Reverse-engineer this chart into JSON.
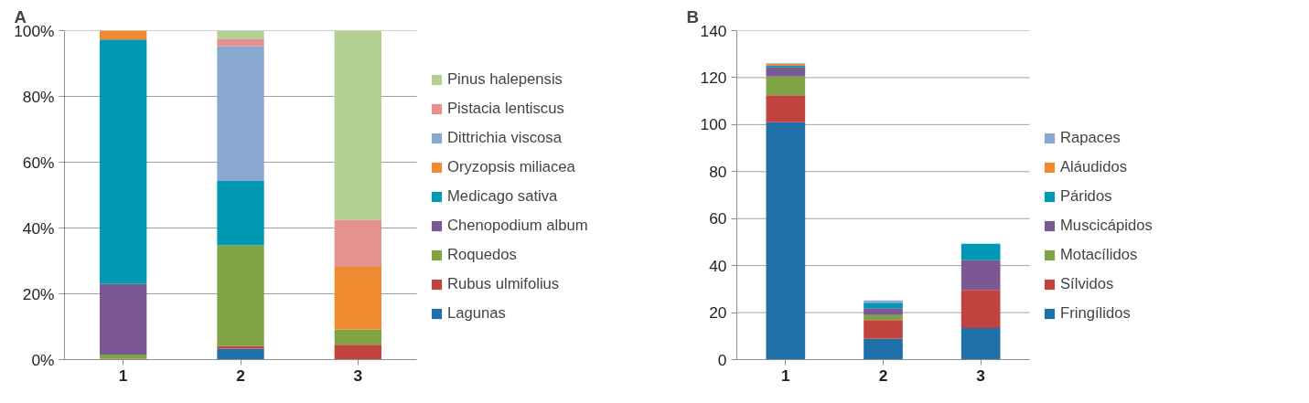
{
  "chart_data": [
    {
      "type": "bar",
      "title": "A",
      "categories": [
        "1",
        "2",
        "3"
      ],
      "stacked": true,
      "grid": "y",
      "legend": "right",
      "ylim": [
        0,
        100
      ],
      "yticks": [
        {
          "value": 0,
          "label": "0%"
        },
        {
          "value": 20,
          "label": "20%"
        },
        {
          "value": 40,
          "label": "40%"
        },
        {
          "value": 60,
          "label": "60%"
        },
        {
          "value": 80,
          "label": "80%"
        },
        {
          "value": 100,
          "label": "100%"
        }
      ],
      "series": [
        {
          "name": "Lagunas",
          "color": "#1f6fa8",
          "values": [
            0,
            3.3,
            0
          ]
        },
        {
          "name": "Rubus ulmifolius",
          "color": "#c0433e",
          "values": [
            0.3,
            0.9,
            4.5
          ]
        },
        {
          "name": "Roquedos",
          "color": "#7fa345",
          "values": [
            1.2,
            30.5,
            4.7
          ]
        },
        {
          "name": "Chenopodium album",
          "color": "#7a5891",
          "values": [
            21.5,
            0,
            0
          ]
        },
        {
          "name": "Medicago sativa",
          "color": "#0098b3",
          "values": [
            74.3,
            19.6,
            0
          ]
        },
        {
          "name": "Oryzopsis miliacea",
          "color": "#ef8a30",
          "values": [
            2.7,
            0,
            19
          ]
        },
        {
          "name": "Dittrichia viscosa",
          "color": "#8aa9d0",
          "values": [
            0,
            41,
            0
          ]
        },
        {
          "name": "Pistacia lentiscus",
          "color": "#e4928f",
          "values": [
            0,
            2.3,
            14.3
          ]
        },
        {
          "name": "Pinus halepensis",
          "color": "#b3d093",
          "values": [
            0,
            2.4,
            57.5
          ]
        }
      ]
    },
    {
      "type": "bar",
      "title": "B",
      "categories": [
        "1",
        "2",
        "3"
      ],
      "stacked": true,
      "grid": "y",
      "legend": "right",
      "ylim": [
        0,
        140
      ],
      "yticks": [
        0,
        20,
        40,
        60,
        80,
        100,
        120,
        140
      ],
      "series": [
        {
          "name": "Fringílidos",
          "color": "#1f6fa8",
          "values": [
            101,
            8.8,
            13.4
          ]
        },
        {
          "name": "Sílvidos",
          "color": "#c0433e",
          "values": [
            11.5,
            8,
            16.3
          ]
        },
        {
          "name": "Motacílidos",
          "color": "#7fa345",
          "values": [
            8,
            2.2,
            0
          ]
        },
        {
          "name": "Muscicápidos",
          "color": "#7a5891",
          "values": [
            3.8,
            2.9,
            12.6
          ]
        },
        {
          "name": "Páridos",
          "color": "#0098b3",
          "values": [
            0.7,
            2.3,
            7
          ]
        },
        {
          "name": "Aláudidos",
          "color": "#ef8a30",
          "values": [
            0.8,
            0,
            0
          ]
        },
        {
          "name": "Rapaces",
          "color": "#8aa9d0",
          "values": [
            0.3,
            1,
            0
          ]
        }
      ]
    }
  ]
}
